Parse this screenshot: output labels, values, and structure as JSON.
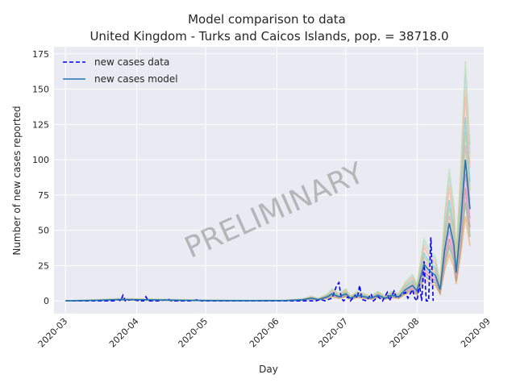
{
  "chart_data": {
    "type": "line",
    "title_line1": "Model comparison to data",
    "title_line2": "United Kingdom - Turks and Caicos Islands, pop. = 38718.0",
    "xlabel": "Day",
    "ylabel": "Number of new cases reported",
    "watermark": "PRELIMINARY",
    "x_axis": {
      "type": "date",
      "min": "2020-02-25",
      "max": "2020-08-30"
    },
    "ylim": [
      -9,
      180
    ],
    "x_ticks": [
      "2020-03",
      "2020-04",
      "2020-05",
      "2020-06",
      "2020-07",
      "2020-08",
      "2020-09"
    ],
    "x_tick_dates": [
      "2020-03-01",
      "2020-04-01",
      "2020-05-01",
      "2020-06-01",
      "2020-07-01",
      "2020-08-01",
      "2020-09-01"
    ],
    "y_ticks": [
      0,
      25,
      50,
      75,
      100,
      125,
      150,
      175
    ],
    "grid": true,
    "legend": {
      "placement": "top-left",
      "entries": [
        {
          "label": "new cases data",
          "style": "dashed",
          "color": "#0000ff"
        },
        {
          "label": "new cases model",
          "style": "solid",
          "color": "#1f77b4"
        }
      ]
    },
    "series": [
      {
        "name": "new cases data",
        "style": "dashed",
        "color": "#0000ff",
        "points": [
          [
            "2020-03-01",
            0
          ],
          [
            "2020-03-10",
            0
          ],
          [
            "2020-03-15",
            0
          ],
          [
            "2020-03-20",
            0
          ],
          [
            "2020-03-22",
            0
          ],
          [
            "2020-03-24",
            1
          ],
          [
            "2020-03-25",
            0
          ],
          [
            "2020-03-26",
            4
          ],
          [
            "2020-03-27",
            0
          ],
          [
            "2020-03-30",
            1
          ],
          [
            "2020-04-02",
            0
          ],
          [
            "2020-04-04",
            0
          ],
          [
            "2020-04-05",
            3
          ],
          [
            "2020-04-06",
            0
          ],
          [
            "2020-04-10",
            0
          ],
          [
            "2020-04-15",
            1
          ],
          [
            "2020-04-16",
            0
          ],
          [
            "2020-04-25",
            0
          ],
          [
            "2020-04-28",
            1
          ],
          [
            "2020-04-29",
            0
          ],
          [
            "2020-06-01",
            0
          ],
          [
            "2020-06-18",
            0
          ],
          [
            "2020-06-20",
            1
          ],
          [
            "2020-06-22",
            0
          ],
          [
            "2020-06-25",
            2
          ],
          [
            "2020-06-27",
            11
          ],
          [
            "2020-06-28",
            13
          ],
          [
            "2020-06-29",
            2
          ],
          [
            "2020-06-30",
            0
          ],
          [
            "2020-07-02",
            3
          ],
          [
            "2020-07-03",
            0
          ],
          [
            "2020-07-05",
            4
          ],
          [
            "2020-07-06",
            2
          ],
          [
            "2020-07-07",
            11
          ],
          [
            "2020-07-08",
            1
          ],
          [
            "2020-07-10",
            0
          ],
          [
            "2020-07-12",
            5
          ],
          [
            "2020-07-13",
            0
          ],
          [
            "2020-07-15",
            3
          ],
          [
            "2020-07-17",
            0
          ],
          [
            "2020-07-19",
            6
          ],
          [
            "2020-07-20",
            0
          ],
          [
            "2020-07-22",
            7
          ],
          [
            "2020-07-23",
            2
          ],
          [
            "2020-07-25",
            4
          ],
          [
            "2020-07-27",
            6
          ],
          [
            "2020-07-28",
            2
          ],
          [
            "2020-07-30",
            8
          ],
          [
            "2020-07-31",
            2
          ],
          [
            "2020-08-01",
            0
          ],
          [
            "2020-08-02",
            12
          ],
          [
            "2020-08-03",
            0
          ],
          [
            "2020-08-04",
            28
          ],
          [
            "2020-08-05",
            0
          ],
          [
            "2020-08-06",
            0
          ],
          [
            "2020-08-07",
            45
          ],
          [
            "2020-08-08",
            0
          ]
        ]
      },
      {
        "name": "new cases model",
        "style": "solid",
        "color": "#1f77b4",
        "points": [
          [
            "2020-03-01",
            0
          ],
          [
            "2020-03-15",
            0.5
          ],
          [
            "2020-03-25",
            1
          ],
          [
            "2020-04-05",
            0.8
          ],
          [
            "2020-04-20",
            0.5
          ],
          [
            "2020-05-01",
            0.3
          ],
          [
            "2020-05-20",
            0.2
          ],
          [
            "2020-06-05",
            0.3
          ],
          [
            "2020-06-12",
            0.8
          ],
          [
            "2020-06-16",
            2
          ],
          [
            "2020-06-19",
            1
          ],
          [
            "2020-06-23",
            3
          ],
          [
            "2020-06-25",
            5
          ],
          [
            "2020-06-28",
            3
          ],
          [
            "2020-07-01",
            5
          ],
          [
            "2020-07-03",
            2
          ],
          [
            "2020-07-06",
            4
          ],
          [
            "2020-07-09",
            3
          ],
          [
            "2020-07-12",
            2
          ],
          [
            "2020-07-15",
            4
          ],
          [
            "2020-07-18",
            2
          ],
          [
            "2020-07-21",
            4
          ],
          [
            "2020-07-24",
            3
          ],
          [
            "2020-07-27",
            8
          ],
          [
            "2020-07-30",
            11
          ],
          [
            "2020-08-01",
            7
          ],
          [
            "2020-08-04",
            26
          ],
          [
            "2020-08-06",
            22
          ],
          [
            "2020-08-09",
            18
          ],
          [
            "2020-08-11",
            8
          ],
          [
            "2020-08-13",
            36
          ],
          [
            "2020-08-15",
            55
          ],
          [
            "2020-08-17",
            40
          ],
          [
            "2020-08-18",
            20
          ],
          [
            "2020-08-20",
            55
          ],
          [
            "2020-08-22",
            100
          ],
          [
            "2020-08-24",
            65
          ]
        ]
      }
    ]
  }
}
